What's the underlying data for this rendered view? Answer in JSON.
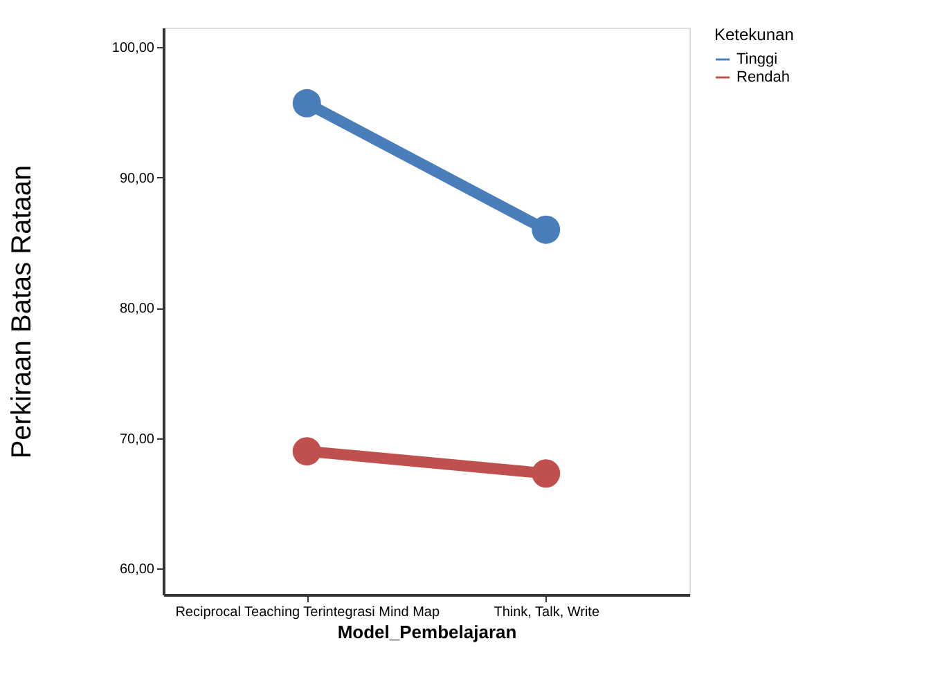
{
  "chart_data": {
    "type": "line",
    "xlabel": "Model_Pembelajaran",
    "ylabel": "Perkiraan Batas Rataan",
    "legend_title": "Ketekunan",
    "categories": [
      "Reciprocal Teaching Terintegrasi Mind Map",
      "Think, Talk, Write"
    ],
    "series": [
      {
        "name": "Tinggi",
        "color": "#4a7ebb",
        "values": [
          95.7,
          86.0
        ]
      },
      {
        "name": "Rendah",
        "color": "#c0504d",
        "values": [
          69.0,
          67.3
        ]
      }
    ],
    "ylim": [
      58,
      101.5
    ],
    "yticks": [
      {
        "value": 60,
        "label": "60,00"
      },
      {
        "value": 70,
        "label": "70,00"
      },
      {
        "value": 80,
        "label": "80,00"
      },
      {
        "value": 90,
        "label": "90,00"
      },
      {
        "value": 100,
        "label": "100,00"
      }
    ],
    "marker": "circle",
    "line_style": "solid",
    "grid": false,
    "legend": "top right"
  }
}
